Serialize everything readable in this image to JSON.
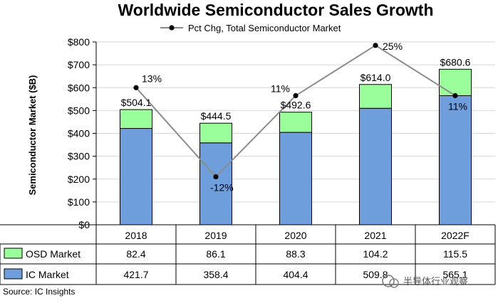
{
  "chart_data": {
    "type": "bar",
    "title": "Worldwide Semiconductor Sales Growth",
    "ylabel": "Semiconductor Market ($B)",
    "ylim": [
      0,
      800
    ],
    "y_ticks": [
      "$0",
      "$100",
      "$200",
      "$300",
      "$400",
      "$500",
      "$600",
      "$700",
      "$800"
    ],
    "y_tick_values": [
      0,
      100,
      200,
      300,
      400,
      500,
      600,
      700,
      800
    ],
    "grid": true,
    "stacked": true,
    "categories": [
      "2018",
      "2019",
      "2020",
      "2021",
      "2022F"
    ],
    "series": [
      {
        "name": "IC Market",
        "values": [
          421.7,
          358.4,
          404.4,
          509.8,
          565.1
        ],
        "display": [
          "421.7",
          "358.4",
          "404.4",
          "509.8",
          "565.1"
        ],
        "color": "#6f9edc"
      },
      {
        "name": "OSD Market",
        "values": [
          82.4,
          86.1,
          88.3,
          104.2,
          115.5
        ],
        "display": [
          "82.4",
          "86.1",
          "88.3",
          "104.2",
          "115.5"
        ],
        "color": "#9aff9a"
      }
    ],
    "totals": [
      "$504.1",
      "$444.5",
      "$492.6",
      "$614.0",
      "$680.6"
    ],
    "total_values": [
      504.1,
      444.5,
      492.6,
      614.0,
      680.6
    ],
    "line": {
      "name": "Pct Chg, Total Semiconductor Market",
      "values": [
        13,
        -12,
        11,
        25,
        11
      ],
      "labels": [
        "13%",
        "-12%",
        "11%",
        "25%",
        "11%"
      ],
      "plot_y_dollars": [
        600,
        210,
        565,
        785,
        565
      ]
    },
    "source": "Source: IC Insights",
    "watermark": "半导体行业观察"
  }
}
